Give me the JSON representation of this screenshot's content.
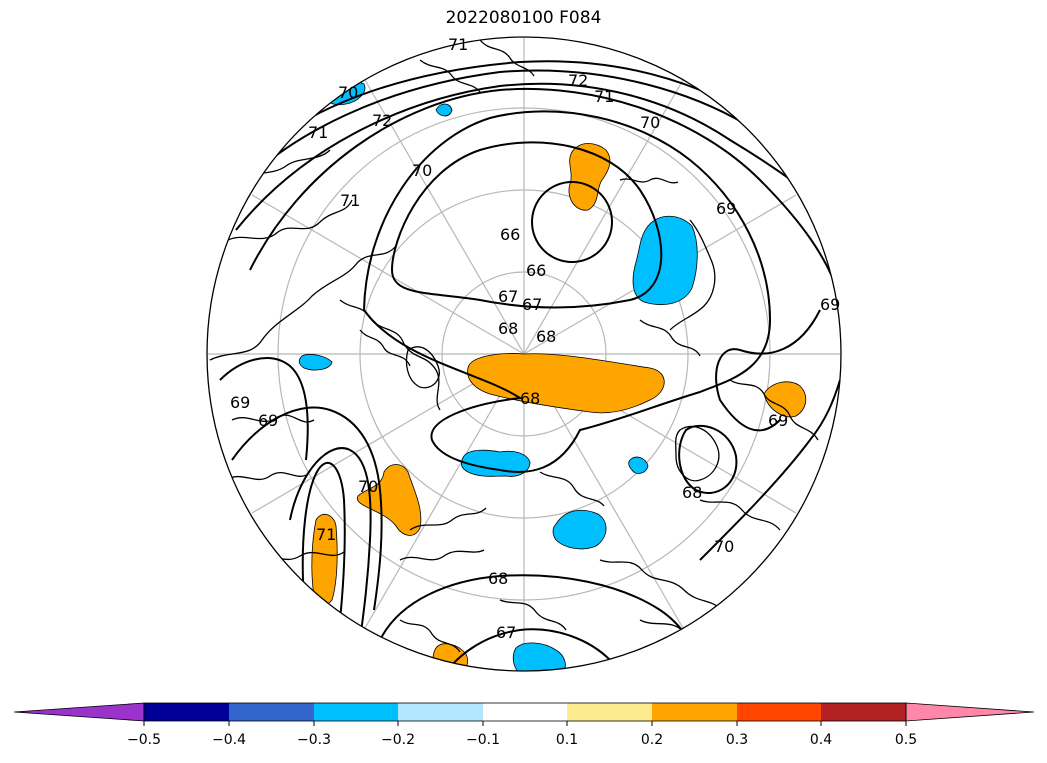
{
  "title": "2022080100 F084",
  "colorbar": {
    "colors": [
      "#9933cc",
      "#000099",
      "#3366cc",
      "#00bfff",
      "#b3e6ff",
      "#ffffff",
      "#ffeb8f",
      "#ffa500",
      "#ff4500",
      "#b22222",
      "#ff88aa"
    ],
    "ticks": [
      "−0.5",
      "−0.4",
      "−0.3",
      "−0.2",
      "−0.1",
      "0.1",
      "0.2",
      "0.3",
      "0.4",
      "0.5"
    ]
  },
  "contour_labels": [
    "71",
    "70",
    "71",
    "72",
    "72",
    "71",
    "70",
    "70",
    "71",
    "69",
    "69",
    "66",
    "66",
    "67",
    "67",
    "68",
    "68",
    "68",
    "69",
    "69",
    "70",
    "71",
    "68",
    "68",
    "67",
    "70",
    "69"
  ],
  "anomaly_colors": {
    "positive": "#ffa500",
    "positive_light": "#ffeb8f",
    "negative": "#00bfff",
    "negative_light": "#b3e6ff"
  }
}
